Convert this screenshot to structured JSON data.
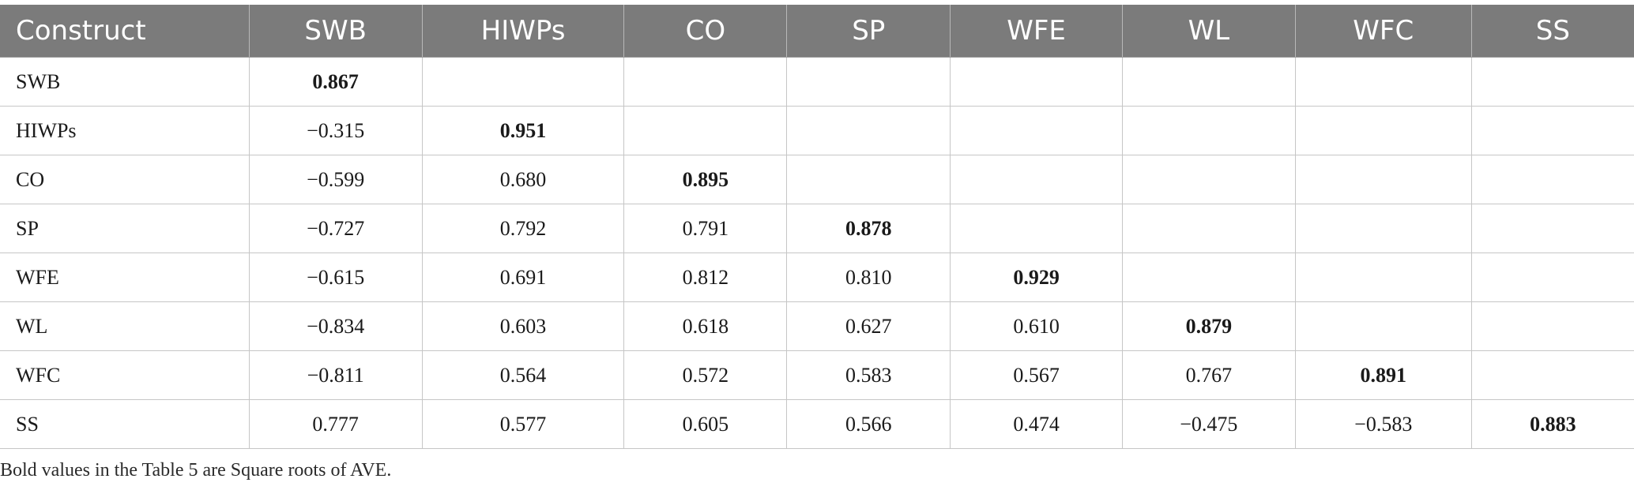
{
  "table": {
    "columns": [
      "Construct",
      "SWB",
      "HIWPs",
      "CO",
      "SP",
      "WFE",
      "WL",
      "WFC",
      "SS"
    ],
    "rows": [
      {
        "label": "SWB",
        "values": [
          "0.867",
          "",
          "",
          "",
          "",
          "",
          "",
          ""
        ]
      },
      {
        "label": "HIWPs",
        "values": [
          "−0.315",
          "0.951",
          "",
          "",
          "",
          "",
          "",
          ""
        ]
      },
      {
        "label": "CO",
        "values": [
          "−0.599",
          "0.680",
          "0.895",
          "",
          "",
          "",
          "",
          ""
        ]
      },
      {
        "label": "SP",
        "values": [
          "−0.727",
          "0.792",
          "0.791",
          "0.878",
          "",
          "",
          "",
          ""
        ]
      },
      {
        "label": "WFE",
        "values": [
          "−0.615",
          "0.691",
          "0.812",
          "0.810",
          "0.929",
          "",
          "",
          ""
        ]
      },
      {
        "label": "WL",
        "values": [
          "−0.834",
          "0.603",
          "0.618",
          "0.627",
          "0.610",
          "0.879",
          "",
          ""
        ]
      },
      {
        "label": "WFC",
        "values": [
          "−0.811",
          "0.564",
          "0.572",
          "0.583",
          "0.567",
          "0.767",
          "0.891",
          ""
        ]
      },
      {
        "label": "SS",
        "values": [
          "0.777",
          "0.577",
          "0.605",
          "0.566",
          "0.474",
          "−0.475",
          "−0.583",
          "0.883"
        ]
      }
    ]
  },
  "note": "Bold values in the Table 5 are Square roots of AVE.",
  "colors": {
    "header_background": "#7b7b7b",
    "header_text": "#ffffff",
    "grid_line": "#c6c6c6"
  }
}
